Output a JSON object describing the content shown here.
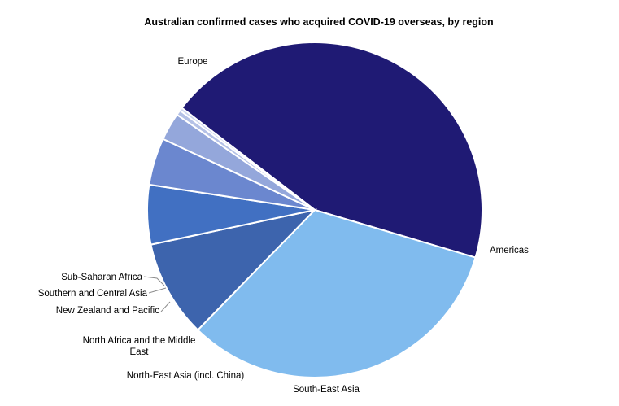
{
  "chart_data": {
    "type": "pie",
    "title": "Australian confirmed cases who acquired COVID-19 overseas, by region",
    "slices": [
      {
        "label": "Europe",
        "lines": [
          "Europe"
        ],
        "value": 44.7,
        "color": "#1f1a74"
      },
      {
        "label": "Americas",
        "lines": [
          "Americas"
        ],
        "value": 33.1,
        "color": "#80bbee"
      },
      {
        "label": "South-East Asia",
        "lines": [
          "South-East Asia"
        ],
        "value": 9.5,
        "color": "#3d64ad"
      },
      {
        "label": "North-East Asia (incl. China)",
        "lines": [
          "North-East Asia (incl. China)"
        ],
        "value": 5.8,
        "color": "#4170c2"
      },
      {
        "label": "North Africa and the Middle East",
        "lines": [
          "North Africa and the Middle",
          "East"
        ],
        "value": 4.6,
        "color": "#6b87cf"
      },
      {
        "label": "New Zealand and Pacific",
        "lines": [
          "New Zealand and Pacific"
        ],
        "value": 2.7,
        "color": "#94a7db"
      },
      {
        "label": "Southern and Central Asia",
        "lines": [
          "Southern and Central Asia"
        ],
        "value": 0.5,
        "color": "#b4c1e6"
      },
      {
        "label": "Sub-Saharan Africa",
        "lines": [
          "Sub-Saharan Africa"
        ],
        "value": 0.3,
        "color": "#cdd6ef"
      }
    ]
  }
}
